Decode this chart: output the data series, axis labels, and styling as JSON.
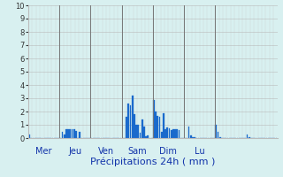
{
  "title": "Précipitations 24h ( mm )",
  "ylim": [
    0,
    10
  ],
  "yticks": [
    0,
    1,
    2,
    3,
    4,
    5,
    6,
    7,
    8,
    9,
    10
  ],
  "background_color": "#d8f0f0",
  "bar_color": "#1a6acc",
  "grid_color": "#bbbbbb",
  "day_line_color": "#777777",
  "bar_edge_color": "#1a6acc",
  "values": [
    0.25,
    0,
    0,
    0,
    0,
    0,
    0,
    0,
    0,
    0,
    0,
    0,
    0,
    0,
    0,
    0,
    0,
    0.5,
    0.3,
    0.65,
    0.7,
    0.65,
    0.7,
    0.65,
    0.55,
    0,
    0.45,
    0,
    0,
    0,
    0,
    0,
    0,
    0,
    0,
    0,
    0,
    0,
    0,
    0,
    0,
    0,
    0,
    0,
    0,
    0,
    0,
    0,
    0,
    0,
    1.6,
    2.6,
    2.5,
    3.2,
    1.8,
    1.0,
    1.0,
    0.4,
    1.4,
    0.9,
    0.15,
    0.2,
    0,
    0,
    2.9,
    2.0,
    1.7,
    1.6,
    0.5,
    1.85,
    0.7,
    0.8,
    0.75,
    0.6,
    0.7,
    0.65,
    0.7,
    0.6,
    0,
    0,
    0,
    0,
    0.9,
    0.2,
    0.1,
    0.1,
    0,
    0,
    0,
    0,
    0,
    0,
    0,
    0,
    0,
    0,
    1.0,
    0.5,
    0.1,
    0,
    0,
    0,
    0,
    0,
    0,
    0,
    0,
    0,
    0,
    0,
    0,
    0,
    0.3,
    0.1,
    0,
    0,
    0,
    0,
    0,
    0,
    0,
    0,
    0,
    0,
    0,
    0,
    0,
    0
  ],
  "n_per_day": 16,
  "day_labels": [
    "Mer",
    "Jeu",
    "Ven",
    "Sam",
    "Dim",
    "Lu"
  ],
  "title_fontsize": 8,
  "tick_fontsize": 6,
  "day_label_fontsize": 7
}
